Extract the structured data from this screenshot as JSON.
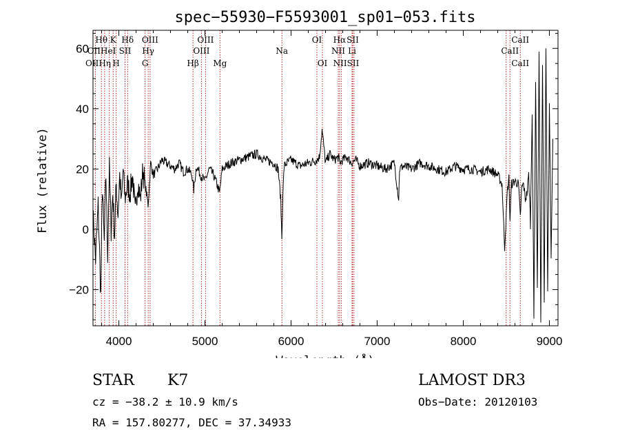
{
  "chart_data": {
    "type": "line",
    "title": "spec−55930−F5593001_sp01−053.fits",
    "xlabel": "Wavelength (Å)",
    "ylabel": "Flux (relative)",
    "xlim": [
      3700,
      9100
    ],
    "ylim": [
      -32,
      66
    ],
    "x_ticks": [
      4000,
      5000,
      6000,
      7000,
      8000,
      9000
    ],
    "y_ticks": [
      -20,
      0,
      20,
      40,
      60
    ],
    "grid": false,
    "series": [
      {
        "name": "flux",
        "x": [
          3700,
          3730,
          3760,
          3790,
          3810,
          3830,
          3850,
          3870,
          3890,
          3910,
          3930,
          3950,
          3970,
          3990,
          4010,
          4030,
          4050,
          4070,
          4100,
          4130,
          4160,
          4190,
          4220,
          4250,
          4280,
          4310,
          4340,
          4370,
          4400,
          4450,
          4500,
          4550,
          4600,
          4650,
          4700,
          4750,
          4800,
          4850,
          4870,
          4900,
          4950,
          5000,
          5050,
          5100,
          5150,
          5170,
          5200,
          5250,
          5300,
          5400,
          5500,
          5600,
          5700,
          5800,
          5850,
          5880,
          5893,
          5905,
          5920,
          5950,
          6000,
          6100,
          6200,
          6300,
          6330,
          6360,
          6400,
          6450,
          6500,
          6550,
          6563,
          6600,
          6650,
          6700,
          6750,
          6800,
          6900,
          7000,
          7100,
          7200,
          7250,
          7260,
          7300,
          7400,
          7500,
          7600,
          7700,
          7800,
          7900,
          8000,
          8100,
          8200,
          8300,
          8400,
          8450,
          8480,
          8498,
          8510,
          8530,
          8542,
          8560,
          8600,
          8640,
          8662,
          8680,
          8700,
          8720,
          8740,
          8760,
          8780,
          8800,
          8820,
          8840,
          8860,
          8880,
          8900,
          8920,
          8940,
          8960,
          8980,
          9000,
          9020,
          9040
        ],
        "y": [
          5,
          -10,
          8,
          -22,
          15,
          -5,
          18,
          -8,
          20,
          0,
          12,
          -2,
          15,
          5,
          18,
          8,
          20,
          10,
          15,
          12,
          18,
          5,
          16,
          10,
          20,
          14,
          8,
          22,
          18,
          20,
          23,
          22,
          21,
          20,
          22,
          19,
          20,
          18,
          13,
          21,
          18,
          16,
          20,
          18,
          14,
          12,
          20,
          21,
          22,
          23,
          24,
          25,
          23,
          22,
          20,
          10,
          -3,
          12,
          21,
          22,
          23,
          21,
          22,
          23,
          24,
          33,
          22,
          25,
          23,
          24,
          22,
          23,
          24,
          22,
          23,
          21,
          22,
          21,
          20,
          22,
          10,
          20,
          21,
          20,
          22,
          21,
          20,
          19,
          21,
          20,
          20,
          19,
          20,
          18,
          15,
          -6,
          4,
          12,
          17,
          3,
          15,
          16,
          15,
          4,
          14,
          15,
          10,
          12,
          18,
          2,
          40,
          -30,
          50,
          -20,
          60,
          -30,
          55,
          -25,
          62,
          -20,
          40,
          -10,
          30
        ]
      }
    ],
    "lines": [
      {
        "name": "O II",
        "wavelength": 3727
      },
      {
        "name": "Hθ",
        "wavelength": 3798
      },
      {
        "name": "Hη",
        "wavelength": 3835
      },
      {
        "name": "He I",
        "wavelength": 3889
      },
      {
        "name": "K",
        "wavelength": 3934
      },
      {
        "name": "H",
        "wavelength": 3969
      },
      {
        "name": "S II",
        "wavelength": 4072
      },
      {
        "name": "Hδ",
        "wavelength": 4102
      },
      {
        "name": "G",
        "wavelength": 4305
      },
      {
        "name": "Hγ",
        "wavelength": 4341
      },
      {
        "name": "O III",
        "wavelength": 4363
      },
      {
        "name": "Hβ",
        "wavelength": 4861
      },
      {
        "name": "O III",
        "wavelength": 4959
      },
      {
        "name": "O III",
        "wavelength": 5007
      },
      {
        "name": "Mg",
        "wavelength": 5175
      },
      {
        "name": "Na",
        "wavelength": 5894
      },
      {
        "name": "O I",
        "wavelength": 6300
      },
      {
        "name": "O I",
        "wavelength": 6364
      },
      {
        "name": "N II",
        "wavelength": 6548
      },
      {
        "name": "Hα",
        "wavelength": 6563
      },
      {
        "name": "N II",
        "wavelength": 6583
      },
      {
        "name": "Li",
        "wavelength": 6708
      },
      {
        "name": "S II",
        "wavelength": 6716
      },
      {
        "name": "S II",
        "wavelength": 6731
      },
      {
        "name": "Ca II",
        "wavelength": 8498
      },
      {
        "name": "Ca II",
        "wavelength": 8542
      },
      {
        "name": "Ca II",
        "wavelength": 8662
      }
    ],
    "line_labels": [
      {
        "text": "Hθ",
        "wavelength": 3798,
        "row": 0
      },
      {
        "text": "K",
        "wavelength": 3934,
        "row": 0
      },
      {
        "text": "Hδ",
        "wavelength": 4102,
        "row": 0
      },
      {
        "text": "OIII",
        "wavelength": 4363,
        "row": 0
      },
      {
        "text": "OIII",
        "wavelength": 5007,
        "row": 0
      },
      {
        "text": "OI",
        "wavelength": 6300,
        "row": 0
      },
      {
        "text": "Hα",
        "wavelength": 6563,
        "row": 0
      },
      {
        "text": "SII",
        "wavelength": 6716,
        "row": 0
      },
      {
        "text": "CaII",
        "wavelength": 8662,
        "row": 0
      },
      {
        "text": "OIIHeI",
        "wavelength": 3800,
        "row": 1
      },
      {
        "text": "SII",
        "wavelength": 4072,
        "row": 1
      },
      {
        "text": "Hγ",
        "wavelength": 4341,
        "row": 1
      },
      {
        "text": "OIII",
        "wavelength": 4959,
        "row": 1
      },
      {
        "text": "Na",
        "wavelength": 5894,
        "row": 1
      },
      {
        "text": "NII",
        "wavelength": 6548,
        "row": 1
      },
      {
        "text": "Li",
        "wavelength": 6708,
        "row": 1
      },
      {
        "text": "CaII",
        "wavelength": 8542,
        "row": 1
      },
      {
        "text": "OIIHη",
        "wavelength": 3760,
        "row": 2
      },
      {
        "text": "H",
        "wavelength": 3969,
        "row": 2
      },
      {
        "text": "G",
        "wavelength": 4305,
        "row": 2
      },
      {
        "text": "Hβ",
        "wavelength": 4861,
        "row": 2
      },
      {
        "text": "Mg",
        "wavelength": 5175,
        "row": 2
      },
      {
        "text": "OI",
        "wavelength": 6364,
        "row": 2
      },
      {
        "text": "NIISII",
        "wavelength": 6640,
        "row": 2
      },
      {
        "text": "CaII",
        "wavelength": 8662,
        "row": 2
      }
    ]
  },
  "info": {
    "object_class": "STAR",
    "subclass": "K7",
    "velocity": "cz = −38.2 ± 10.9 km/s",
    "coords": "RA = 157.80277, DEC =  37.34933",
    "survey": "LAMOST DR3",
    "obs_date": "Obs−Date: 20120103"
  },
  "colors": {
    "line_marker": "#b22222",
    "spectrum": "#000000",
    "axes": "#000000"
  }
}
